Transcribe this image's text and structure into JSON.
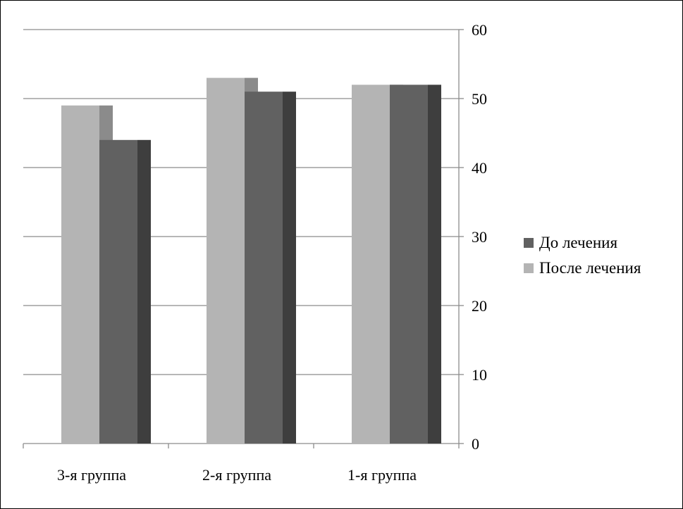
{
  "chart_data": {
    "type": "bar",
    "categories": [
      "3-я группа",
      "2-я группа",
      "1-я группа"
    ],
    "series": [
      {
        "name": "После лечения",
        "values": [
          49,
          53,
          52
        ],
        "color": "#b4b4b4"
      },
      {
        "name": "До лечения",
        "values": [
          44,
          51,
          52
        ],
        "color": "#616161"
      }
    ],
    "ylim": [
      0,
      60
    ],
    "yticks": [
      0,
      10,
      20,
      30,
      40,
      50,
      60
    ],
    "y_axis_position": "right",
    "grid": true,
    "bar_style": "3d-depth",
    "legend_placement": "right",
    "legend": [
      "До лечения",
      "После лечения"
    ],
    "legend_colors": [
      "#616161",
      "#b4b4b4"
    ]
  }
}
